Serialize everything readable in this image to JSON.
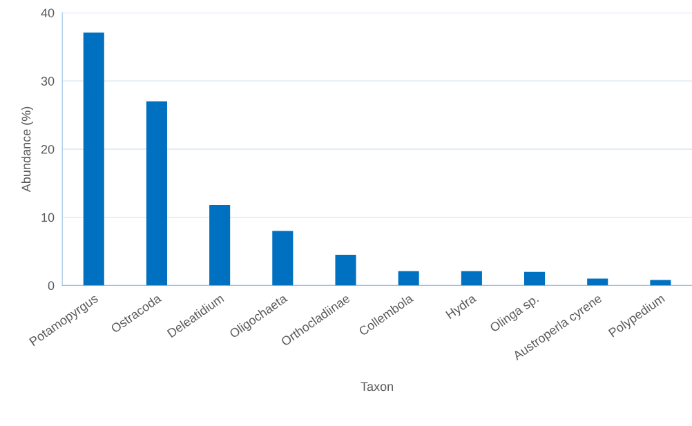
{
  "chart_data": {
    "type": "bar",
    "xlabel": "Taxon",
    "ylabel": "Abundance (%)",
    "categories": [
      "Potamopyrgus",
      "Ostracoda",
      "Deleatidium",
      "Oligochaeta",
      "Orthocladiinae",
      "Collembola",
      "Hydra",
      "Olinga sp.",
      "Austroperla cyrene",
      "Polypedium"
    ],
    "values": [
      37.1,
      27.0,
      11.8,
      8.0,
      4.5,
      2.1,
      2.1,
      2.0,
      1.0,
      0.8
    ],
    "color": "#0070c0",
    "ylim": [
      0,
      40
    ],
    "yticks": [
      0,
      10,
      20,
      30,
      40
    ],
    "grid": "y"
  }
}
